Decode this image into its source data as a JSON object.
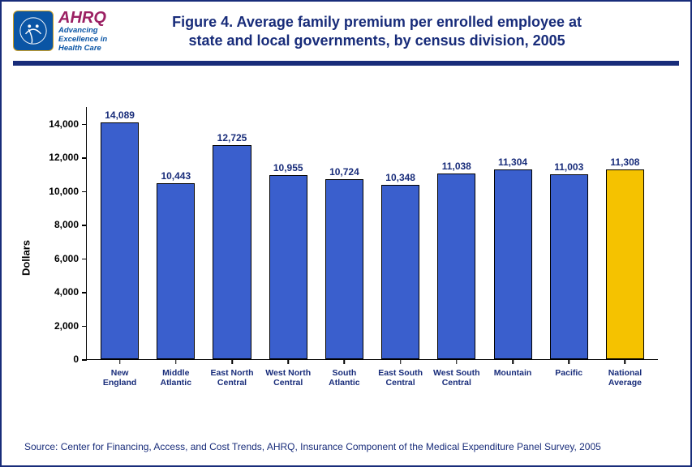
{
  "branding": {
    "agency_acronym": "AHRQ",
    "tagline_line1": "Advancing",
    "tagline_line2": "Excellence in",
    "tagline_line3": "Health Care"
  },
  "title": {
    "line1": "Figure 4. Average family premium per enrolled employee at",
    "line2": "state and local governments, by census division, 2005"
  },
  "chart": {
    "type": "bar",
    "ylabel": "Dollars",
    "ylim_max": 15000,
    "yticks": [
      {
        "v": 0,
        "label": "0"
      },
      {
        "v": 2000,
        "label": "2,000"
      },
      {
        "v": 4000,
        "label": "4,000"
      },
      {
        "v": 6000,
        "label": "6,000"
      },
      {
        "v": 8000,
        "label": "8,000"
      },
      {
        "v": 10000,
        "label": "10,000"
      },
      {
        "v": 12000,
        "label": "12,000"
      },
      {
        "v": 14000,
        "label": "14,000"
      }
    ],
    "bar_default_color": "#3a5fcd",
    "bar_highlight_color": "#f5c200",
    "bar_border_color": "#000000",
    "value_label_color": "#182c7a",
    "axis_color": "#000000",
    "bars": [
      {
        "label": "New England",
        "value": 14089,
        "value_fmt": "14,089",
        "highlight": false
      },
      {
        "label": "Middle Atlantic",
        "value": 10443,
        "value_fmt": "10,443",
        "highlight": false
      },
      {
        "label": "East North Central",
        "value": 12725,
        "value_fmt": "12,725",
        "highlight": false
      },
      {
        "label": "West North Central",
        "value": 10955,
        "value_fmt": "10,955",
        "highlight": false
      },
      {
        "label": "South Atlantic",
        "value": 10724,
        "value_fmt": "10,724",
        "highlight": false
      },
      {
        "label": "East South Central",
        "value": 10348,
        "value_fmt": "10,348",
        "highlight": false
      },
      {
        "label": "West South Central",
        "value": 11038,
        "value_fmt": "11,038",
        "highlight": false
      },
      {
        "label": "Mountain",
        "value": 11304,
        "value_fmt": "11,304",
        "highlight": false
      },
      {
        "label": "Pacific",
        "value": 11003,
        "value_fmt": "11,003",
        "highlight": false
      },
      {
        "label": "National Average",
        "value": 11308,
        "value_fmt": "11,308",
        "highlight": true
      }
    ]
  },
  "source": "Source: Center for Financing, Access, and Cost Trends, AHRQ, Insurance Component of the Medical Expenditure Panel Survey, 2005"
}
